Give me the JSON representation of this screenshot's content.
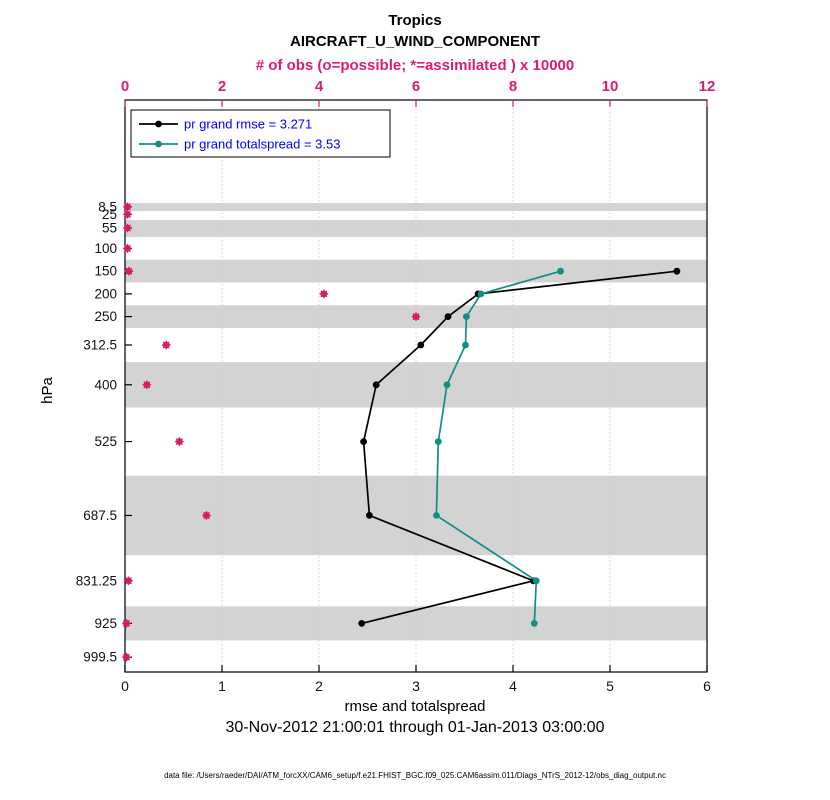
{
  "header": {
    "region_title": "Tropics",
    "variable_title": "AIRCRAFT_U_WIND_COMPONENT"
  },
  "axis_labels": {
    "top": "# of obs (o=possible; *=assimilated ) x 10000",
    "bottom": "rmse and totalspread",
    "left": "hPa"
  },
  "legend": [
    {
      "label": "pr grand rmse = 3.271"
    },
    {
      "label": "pr grand totalspread = 3.53"
    }
  ],
  "footer": {
    "time_range": "30-Nov-2012 21:00:01 through 01-Jan-2013 03:00:00",
    "data_file": "data file: /Users/raeder/DAI/ATM_forcXX/CAM6_setup/f.e21.FHIST_BGC.f09_025.CAM6assim.011/Diags_NTrS_2012-12/obs_diag_output.nc"
  },
  "colors": {
    "magenta": "#dd1a77",
    "obs_marker": "#d81b60",
    "teal": "#0f8f86",
    "line_black": "#000000",
    "legend_text": "#0000ff",
    "band_gray": "#d3d3d3",
    "grid_pink": "#f6bcd4"
  },
  "chart_data": {
    "type": "line",
    "title": "Tropics AIRCRAFT_U_WIND_COMPONENT",
    "x_bottom": {
      "label": "rmse and totalspread",
      "range": [
        0,
        6
      ],
      "ticks": [
        0,
        1,
        2,
        3,
        4,
        5,
        6
      ]
    },
    "x_top": {
      "label": "# of obs (o=possible; *=assimilated ) x 10000",
      "range": [
        0,
        12
      ],
      "ticks": [
        0,
        2,
        4,
        6,
        8,
        10,
        12
      ]
    },
    "y_pressure": {
      "label": "hPa",
      "range": [
        0,
        1032
      ],
      "direction": "increasing-down",
      "ticks": [
        8.5,
        25,
        55,
        100,
        150,
        200,
        250,
        312.5,
        400,
        525,
        687.5,
        831.25,
        925,
        999.5
      ]
    },
    "gray_bands_hpa": [
      [
        0,
        17.5
      ],
      [
        37.5,
        75
      ],
      [
        125,
        175
      ],
      [
        225,
        275
      ],
      [
        350,
        450
      ],
      [
        600,
        775
      ],
      [
        887.5,
        962.5
      ]
    ],
    "series": [
      {
        "id": "rmse",
        "name": "pr grand rmse",
        "summary_value": 3.271,
        "color": "#000000",
        "levels_hpa": [
          150,
          200,
          250,
          312.5,
          400,
          525,
          687.5,
          831.25,
          925
        ],
        "values": [
          5.69,
          3.64,
          3.33,
          3.05,
          2.59,
          2.46,
          2.52,
          4.21,
          2.44
        ]
      },
      {
        "id": "totalspread",
        "name": "pr grand totalspread",
        "summary_value": 3.53,
        "color": "#0f8f86",
        "levels_hpa": [
          150,
          200,
          250,
          312.5,
          400,
          525,
          687.5,
          831.25,
          925
        ],
        "values": [
          4.49,
          3.67,
          3.52,
          3.51,
          3.32,
          3.23,
          3.21,
          4.24,
          4.22
        ]
      }
    ],
    "obs_counts": {
      "id": "obs",
      "name": "# of obs (x 10000)",
      "color": "#d81b60",
      "levels_hpa": [
        8.5,
        25,
        55,
        100,
        150,
        200,
        250,
        312.5,
        400,
        525,
        687.5,
        831.25,
        925,
        999.5
      ],
      "values_x10000": [
        0.05,
        0.05,
        0.05,
        0.05,
        0.08,
        4.1,
        6.0,
        0.85,
        0.45,
        1.12,
        1.68,
        0.07,
        0.03,
        0.03
      ]
    }
  }
}
